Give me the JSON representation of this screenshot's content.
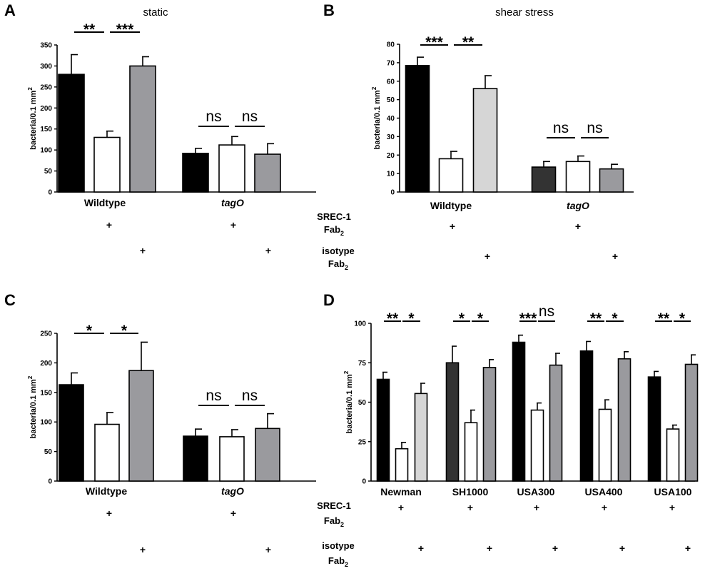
{
  "panel_letters": [
    "A",
    "B",
    "C",
    "D"
  ],
  "treatment_labels": {
    "srec1_line1": "SREC-1",
    "srec1_line2": "Fab",
    "isotype_line1": "isotype",
    "isotype_line2": "Fab",
    "subscript": "2",
    "plus": "+"
  },
  "chart_data": [
    {
      "type": "bar",
      "panel": "A",
      "title": "static",
      "ylabel": "bacteria/0.1 mm",
      "ylabel_superscript": "2",
      "ylim": [
        0,
        350
      ],
      "yticks": [
        0,
        50,
        100,
        150,
        200,
        250,
        300,
        350
      ],
      "groups": [
        "Wildtype",
        "tagO"
      ],
      "bar_colors": [
        "#000000",
        "#ffffff",
        "#9a9a9e",
        "#000000",
        "#ffffff",
        "#9a9a9e"
      ],
      "values": [
        280,
        130,
        300,
        92,
        112,
        90
      ],
      "errors": [
        47,
        15,
        22,
        12,
        20,
        25
      ],
      "significance": [
        {
          "label": "**",
          "bars": [
            0,
            1
          ]
        },
        {
          "label": "***",
          "bars": [
            1,
            2
          ]
        },
        {
          "label": "ns",
          "bars": [
            3,
            4
          ]
        },
        {
          "label": "ns",
          "bars": [
            4,
            5
          ]
        }
      ],
      "show_treatment_labels": false
    },
    {
      "type": "bar",
      "panel": "B",
      "title": "shear stress",
      "ylabel": "bacteria/0.1 mm",
      "ylabel_superscript": "2",
      "ylim": [
        0,
        80
      ],
      "yticks": [
        0,
        10,
        20,
        30,
        40,
        50,
        60,
        70,
        80
      ],
      "groups": [
        "Wildtype",
        "tagO"
      ],
      "bar_colors": [
        "#000000",
        "#ffffff",
        "#d6d6d6",
        "#333333",
        "#ffffff",
        "#9a9a9e"
      ],
      "values": [
        68.5,
        18,
        56,
        13.5,
        16.5,
        12.5
      ],
      "errors": [
        4.5,
        4,
        7,
        3,
        3,
        2.5
      ],
      "significance": [
        {
          "label": "***",
          "bars": [
            0,
            1
          ]
        },
        {
          "label": "**",
          "bars": [
            1,
            2
          ]
        },
        {
          "label": "ns",
          "bars": [
            3,
            4
          ]
        },
        {
          "label": "ns",
          "bars": [
            4,
            5
          ]
        }
      ],
      "show_treatment_labels": true
    },
    {
      "type": "bar",
      "panel": "C",
      "title": "",
      "ylabel": "bacteria/0.1 mm",
      "ylabel_superscript": "2",
      "ylim": [
        0,
        250
      ],
      "yticks": [
        0,
        50,
        100,
        150,
        200,
        250
      ],
      "groups": [
        "Wildtype",
        "tagO"
      ],
      "bar_colors": [
        "#000000",
        "#ffffff",
        "#9a9a9e",
        "#000000",
        "#ffffff",
        "#9a9a9e"
      ],
      "values": [
        163,
        96,
        187,
        76,
        75,
        89
      ],
      "errors": [
        20,
        20,
        48,
        12,
        12,
        25
      ],
      "significance": [
        {
          "label": "*",
          "bars": [
            0,
            1
          ]
        },
        {
          "label": "*",
          "bars": [
            1,
            2
          ]
        },
        {
          "label": "ns",
          "bars": [
            3,
            4
          ]
        },
        {
          "label": "ns",
          "bars": [
            4,
            5
          ]
        }
      ],
      "show_treatment_labels": false
    },
    {
      "type": "bar",
      "panel": "D",
      "title": "",
      "ylabel": "bacteria/0.1 mm",
      "ylabel_superscript": "2",
      "ylim": [
        0,
        100
      ],
      "yticks": [
        0,
        25,
        50,
        75,
        100
      ],
      "groups": [
        "Newman",
        "SH1000",
        "USA300",
        "USA400",
        "USA100"
      ],
      "bar_colors": [
        "#000000",
        "#ffffff",
        "#d6d6d6",
        "#333333",
        "#ffffff",
        "#9a9a9e",
        "#000000",
        "#ffffff",
        "#9a9a9e",
        "#000000",
        "#ffffff",
        "#9a9a9e",
        "#000000",
        "#ffffff",
        "#9a9a9e"
      ],
      "values": [
        64.5,
        20.5,
        55.5,
        75,
        37,
        72,
        88,
        45,
        73.5,
        82.5,
        45.5,
        77.5,
        66,
        33,
        74
      ],
      "errors": [
        4.5,
        4,
        6.5,
        10.5,
        8,
        5,
        4.5,
        4.5,
        7.5,
        6,
        6,
        4.5,
        3.5,
        2.5,
        6
      ],
      "significance": [
        {
          "label": "**",
          "bars": [
            0,
            1
          ]
        },
        {
          "label": "*",
          "bars": [
            1,
            2
          ]
        },
        {
          "label": "*",
          "bars": [
            3,
            4
          ]
        },
        {
          "label": "*",
          "bars": [
            4,
            5
          ]
        },
        {
          "label": "***",
          "bars": [
            6,
            7
          ]
        },
        {
          "label": "ns",
          "bars": [
            7,
            8
          ]
        },
        {
          "label": "**",
          "bars": [
            9,
            10
          ]
        },
        {
          "label": "*",
          "bars": [
            10,
            11
          ]
        },
        {
          "label": "**",
          "bars": [
            12,
            13
          ]
        },
        {
          "label": "*",
          "bars": [
            13,
            14
          ]
        }
      ],
      "show_treatment_labels": true
    }
  ]
}
